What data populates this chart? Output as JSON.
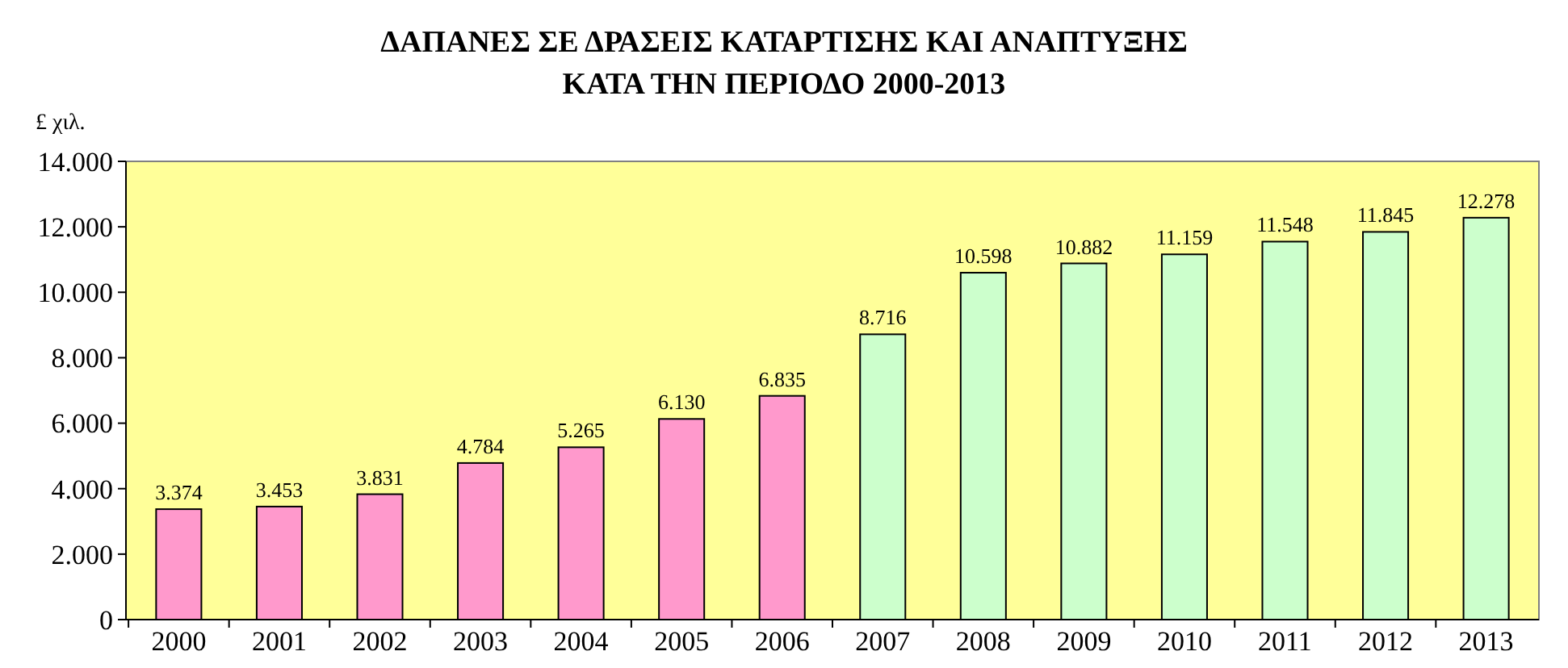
{
  "chart_data": {
    "type": "bar",
    "title": "ΔΑΠΑΝΕΣ ΣΕ ΔΡΑΣΕΙΣ ΚΑΤΑΡΤΙΣΗΣ ΚΑΙ ΑΝΑΠΤΥΞΗΣ ΚΑΤΑ ΤΗΝ ΠΕΡΙΟΔΟ 2000-2013",
    "ylabel": "£ χιλ.",
    "categories": [
      "2000",
      "2001",
      "2002",
      "2003",
      "2004",
      "2005",
      "2006",
      "2007",
      "2008",
      "2009",
      "2010",
      "2011",
      "2012",
      "2013"
    ],
    "values": [
      3374,
      3453,
      3831,
      4784,
      5265,
      6130,
      6835,
      8716,
      10598,
      10882,
      11159,
      11548,
      11845,
      12278
    ],
    "value_labels": [
      "3.374",
      "3.453",
      "3.831",
      "4.784",
      "5.265",
      "6.130",
      "6.835",
      "8.716",
      "10.598",
      "10.882",
      "11.159",
      "11.548",
      "11.845",
      "12.278"
    ],
    "colors": [
      "#ff99cc",
      "#ff99cc",
      "#ff99cc",
      "#ff99cc",
      "#ff99cc",
      "#ff99cc",
      "#ff99cc",
      "#ccffcc",
      "#ccffcc",
      "#ccffcc",
      "#ccffcc",
      "#ccffcc",
      "#ccffcc",
      "#ccffcc"
    ],
    "ylim": [
      0,
      14000
    ],
    "yticks": [
      {
        "value": 0,
        "label": "0"
      },
      {
        "value": 2000,
        "label": "2.000"
      },
      {
        "value": 4000,
        "label": "4.000"
      },
      {
        "value": 6000,
        "label": "6.000"
      },
      {
        "value": 8000,
        "label": "8.000"
      },
      {
        "value": 10000,
        "label": "10.000"
      },
      {
        "value": 12000,
        "label": "12.000"
      },
      {
        "value": 14000,
        "label": "14.000"
      }
    ],
    "grid": false
  }
}
